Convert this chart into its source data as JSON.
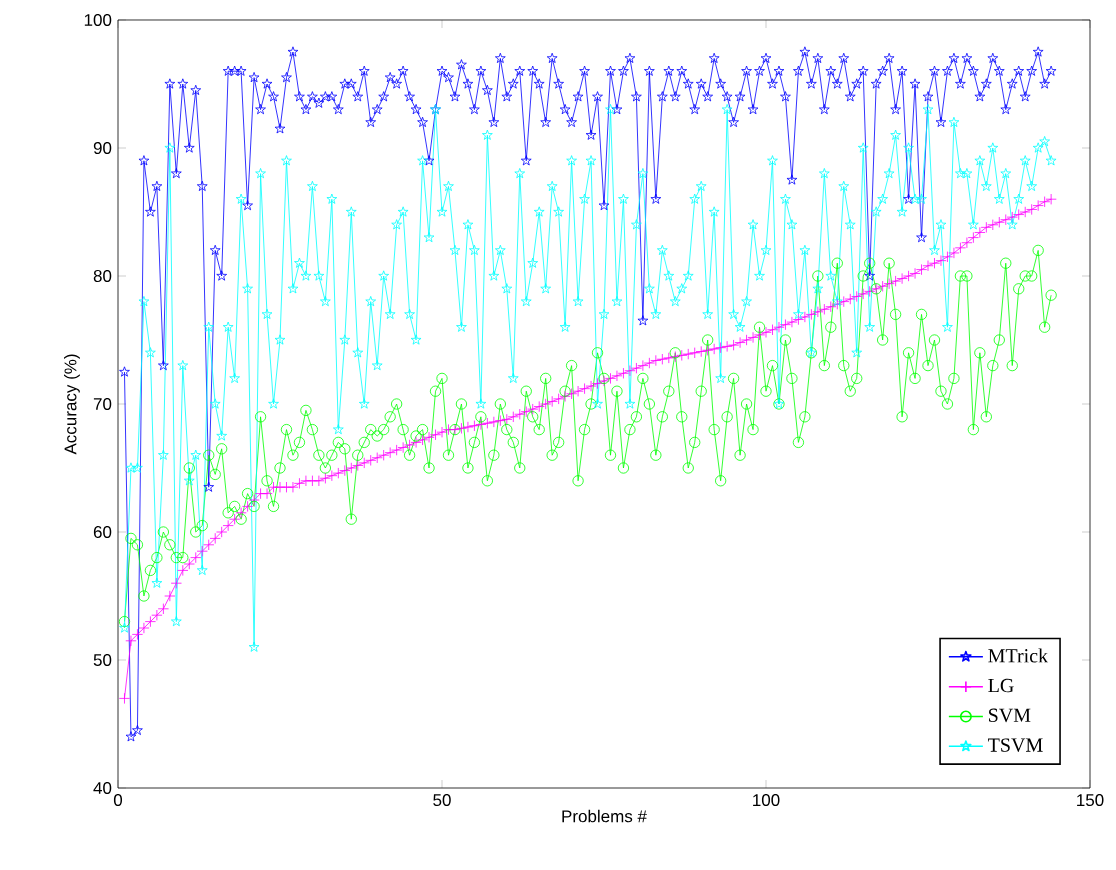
{
  "chart_data": {
    "type": "line",
    "xlabel": "Problems #",
    "ylabel": "Accuracy (%)",
    "x": [
      1,
      2,
      3,
      4,
      5,
      6,
      7,
      8,
      9,
      10,
      11,
      12,
      13,
      14,
      15,
      16,
      17,
      18,
      19,
      20,
      21,
      22,
      23,
      24,
      25,
      26,
      27,
      28,
      29,
      30,
      31,
      32,
      33,
      34,
      35,
      36,
      37,
      38,
      39,
      40,
      41,
      42,
      43,
      44,
      45,
      46,
      47,
      48,
      49,
      50,
      51,
      52,
      53,
      54,
      55,
      56,
      57,
      58,
      59,
      60,
      61,
      62,
      63,
      64,
      65,
      66,
      67,
      68,
      69,
      70,
      71,
      72,
      73,
      74,
      75,
      76,
      77,
      78,
      79,
      80,
      81,
      82,
      83,
      84,
      85,
      86,
      87,
      88,
      89,
      90,
      91,
      92,
      93,
      94,
      95,
      96,
      97,
      98,
      99,
      100,
      101,
      102,
      103,
      104,
      105,
      106,
      107,
      108,
      109,
      110,
      111,
      112,
      113,
      114,
      115,
      116,
      117,
      118,
      119,
      120,
      121,
      122,
      123,
      124,
      125,
      126,
      127,
      128,
      129,
      130,
      131,
      132,
      133,
      134,
      135,
      136,
      137,
      138,
      139,
      140,
      141,
      142,
      143,
      144
    ],
    "series": [
      {
        "name": "MTrick",
        "color": "#0000ff",
        "marker": "star",
        "values": [
          72.5,
          44,
          44.5,
          89,
          85,
          87,
          73,
          95,
          88,
          95,
          90,
          94.5,
          87,
          63.5,
          82,
          80,
          96,
          96,
          96,
          85.5,
          95.5,
          93,
          95,
          94,
          91.5,
          95.5,
          97.5,
          94,
          93,
          94,
          93.5,
          94,
          94,
          93,
          95,
          95,
          94,
          96,
          92,
          93,
          94,
          95.5,
          95,
          96,
          94,
          93,
          92,
          89,
          93,
          96,
          95.5,
          94,
          96.5,
          95,
          93,
          96,
          94.5,
          92,
          97,
          94,
          95,
          96,
          89,
          96,
          95,
          92,
          97,
          95,
          93,
          92,
          94,
          96,
          91,
          94,
          85.5,
          96,
          93,
          96,
          97,
          94,
          76.5,
          96,
          86,
          94,
          96,
          94,
          96,
          95,
          93,
          95,
          94,
          97,
          95,
          94,
          92,
          94,
          96,
          93,
          96,
          97,
          95,
          96,
          94,
          87.5,
          96,
          97.5,
          95,
          97,
          93,
          96,
          95,
          97,
          94,
          95,
          96,
          80,
          95,
          96,
          97,
          93,
          96,
          86,
          95,
          83,
          94,
          96,
          92,
          96,
          97,
          95,
          97,
          96,
          94,
          95,
          97,
          96,
          93,
          95,
          96,
          94,
          96,
          97.5,
          95,
          96
        ]
      },
      {
        "name": "LG",
        "color": "#ff00ff",
        "marker": "cross",
        "values": [
          47,
          51.5,
          52,
          52.5,
          53,
          53.5,
          54,
          55,
          56,
          57,
          57.5,
          58,
          58.5,
          59,
          59.5,
          60,
          60.5,
          61,
          61.5,
          62,
          62.5,
          63,
          63,
          63.5,
          63.5,
          63.5,
          63.5,
          63.8,
          64,
          64,
          64,
          64.2,
          64.4,
          64.6,
          64.8,
          65,
          65.2,
          65.4,
          65.6,
          65.8,
          66,
          66.2,
          66.4,
          66.6,
          66.8,
          67,
          67.2,
          67.4,
          67.6,
          67.8,
          68,
          68,
          68.1,
          68.2,
          68.3,
          68.4,
          68.5,
          68.6,
          68.7,
          68.8,
          69,
          69.2,
          69.4,
          69.6,
          69.8,
          70,
          70.2,
          70.4,
          70.6,
          70.8,
          71,
          71.2,
          71.4,
          71.6,
          71.8,
          72,
          72.2,
          72.4,
          72.6,
          72.8,
          73,
          73.2,
          73.4,
          73.5,
          73.6,
          73.7,
          73.8,
          73.9,
          74,
          74.1,
          74.2,
          74.3,
          74.4,
          74.5,
          74.6,
          74.8,
          75,
          75.2,
          75.4,
          75.6,
          75.8,
          76,
          76.2,
          76.4,
          76.6,
          76.8,
          77,
          77.2,
          77.4,
          77.6,
          77.8,
          78,
          78.2,
          78.4,
          78.6,
          78.8,
          79,
          79.2,
          79.4,
          79.6,
          79.8,
          80,
          80.2,
          80.5,
          80.8,
          81,
          81.2,
          81.5,
          81.8,
          82.2,
          82.6,
          83,
          83.4,
          83.8,
          84,
          84.2,
          84.4,
          84.6,
          84.8,
          85,
          85.2,
          85.5,
          85.8,
          86
        ]
      },
      {
        "name": "SVM",
        "color": "#00ff00",
        "marker": "circle",
        "values": [
          53,
          59.5,
          59,
          55,
          57,
          58,
          60,
          59,
          58,
          58,
          65,
          60,
          60.5,
          66,
          64.5,
          66.5,
          61.5,
          62,
          61,
          63,
          62,
          69,
          64,
          62,
          65,
          68,
          66,
          67,
          69.5,
          68,
          66,
          65,
          66,
          67,
          66.5,
          61,
          66,
          67,
          68,
          67.5,
          68,
          69,
          70,
          68,
          66,
          67.5,
          68,
          65,
          71,
          72,
          66,
          68,
          70,
          65,
          67,
          69,
          64,
          66,
          70,
          68,
          67,
          65,
          71,
          69,
          68,
          72,
          66,
          67,
          71,
          73,
          64,
          68,
          70,
          74,
          72,
          66,
          71,
          65,
          68,
          69,
          72,
          70,
          66,
          69,
          71,
          74,
          69,
          65,
          67,
          71,
          75,
          68,
          64,
          69,
          72,
          66,
          70,
          68,
          76,
          71,
          73,
          70,
          75,
          72,
          67,
          69,
          74,
          80,
          73,
          76,
          81,
          73,
          71,
          72,
          80,
          81,
          79,
          75,
          81,
          77,
          69,
          74,
          72,
          77,
          73,
          75,
          71,
          70,
          72,
          80,
          80,
          68,
          74,
          69,
          73,
          75,
          81,
          73,
          79,
          80,
          80,
          82,
          76,
          78.5
        ]
      },
      {
        "name": "TSVM",
        "color": "#00ffff",
        "marker": "star",
        "values": [
          52.5,
          65,
          65,
          78,
          74,
          56,
          66,
          90,
          53,
          73,
          64,
          66,
          57,
          76,
          70,
          67.5,
          76,
          72,
          86,
          79,
          51,
          88,
          77,
          70,
          75,
          89,
          79,
          81,
          80,
          87,
          80,
          78,
          86,
          68,
          75,
          85,
          74,
          70,
          78,
          73,
          80,
          77,
          84,
          85,
          77,
          75,
          89,
          83,
          93,
          85,
          87,
          82,
          76,
          84,
          82,
          70,
          91,
          80,
          82,
          79,
          72,
          88,
          78,
          81,
          85,
          79,
          87,
          85,
          76,
          89,
          78,
          86,
          89,
          70,
          77,
          93,
          78,
          86,
          70,
          84,
          88,
          79,
          77,
          82,
          80,
          78,
          79,
          80,
          86,
          87,
          77,
          85,
          72,
          93,
          77,
          76,
          78,
          84,
          80,
          82,
          89,
          70,
          86,
          84,
          77,
          82,
          74,
          79,
          88,
          80,
          78,
          87,
          84,
          74,
          90,
          76,
          85,
          86,
          88,
          91,
          85,
          90,
          86,
          86,
          93,
          82,
          84,
          76,
          92,
          88,
          88,
          84,
          89,
          87,
          90,
          86,
          88,
          84,
          86,
          89,
          87,
          90,
          90.5,
          89
        ]
      }
    ],
    "xlim": [
      0,
      150
    ],
    "xticks": [
      0,
      50,
      100,
      150
    ],
    "ylim": [
      40,
      100
    ],
    "yticks": [
      40,
      50,
      60,
      70,
      80,
      90,
      100
    ],
    "grid": false,
    "legend": "bottom right"
  }
}
